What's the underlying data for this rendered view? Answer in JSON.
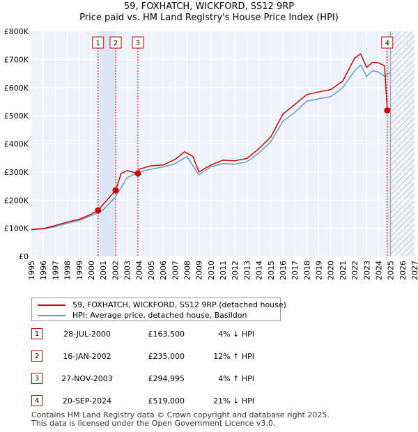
{
  "title_line1": "59, FOXHATCH, WICKFORD, SS12 9RP",
  "title_line2": "Price paid vs. HM Land Registry's House Price Index (HPI)",
  "legend": {
    "property_label": "59, FOXHATCH, WICKFORD, SS12 9RP (detached house)",
    "hpi_label": "HPI: Average price, detached house, Basildon"
  },
  "colors": {
    "property": "#cc0000",
    "hpi": "#6699cc",
    "shade": "#dde6f5",
    "badge_border": "#cc0000"
  },
  "sales": [
    {
      "num": "1",
      "date": "28-JUL-2000",
      "price": "£163,500",
      "hpi": "4% ↓ HPI"
    },
    {
      "num": "2",
      "date": "16-JAN-2002",
      "price": "£235,000",
      "hpi": "12% ↑ HPI"
    },
    {
      "num": "3",
      "date": "27-NOV-2003",
      "price": "£294,995",
      "hpi": "4% ↑ HPI"
    },
    {
      "num": "4",
      "date": "20-SEP-2024",
      "price": "£519,000",
      "hpi": "21% ↓ HPI"
    }
  ],
  "footer_line1": "Contains HM Land Registry data © Crown copyright and database right 2025.",
  "footer_line2": "This data is licensed under the Open Government Licence v3.0.",
  "chart_data": {
    "type": "line",
    "title": "59, FOXHATCH, WICKFORD, SS12 9RP — Price paid vs. HM Land Registry's House Price Index (HPI)",
    "xlim": [
      1995,
      2027
    ],
    "ylim": [
      0,
      800000
    ],
    "x_ticks": [
      "1995",
      "1996",
      "1997",
      "1998",
      "1999",
      "2000",
      "2001",
      "2002",
      "2003",
      "2004",
      "2005",
      "2006",
      "2007",
      "2008",
      "2009",
      "2010",
      "2011",
      "2012",
      "2013",
      "2014",
      "2015",
      "2016",
      "2017",
      "2018",
      "2019",
      "2020",
      "2021",
      "2022",
      "2023",
      "2024",
      "2025",
      "2026",
      "2027"
    ],
    "y_ticks": [
      {
        "value": 0,
        "label": "£0"
      },
      {
        "value": 100000,
        "label": "£100K"
      },
      {
        "value": 200000,
        "label": "£200K"
      },
      {
        "value": 300000,
        "label": "£300K"
      },
      {
        "value": 400000,
        "label": "£400K"
      },
      {
        "value": 500000,
        "label": "£500K"
      },
      {
        "value": 600000,
        "label": "£600K"
      },
      {
        "value": 700000,
        "label": "£700K"
      },
      {
        "value": 800000,
        "label": "£800K"
      }
    ],
    "shaded_ranges": [
      [
        2000.57,
        2002.04
      ],
      [
        2024.72,
        2025.0
      ]
    ],
    "future_hatch_from": 2025.0,
    "sale_markers": [
      {
        "label": "1",
        "x": 2000.57,
        "price": 163500
      },
      {
        "label": "2",
        "x": 2002.04,
        "price": 235000
      },
      {
        "label": "3",
        "x": 2003.9,
        "price": 294995
      },
      {
        "label": "4",
        "x": 2024.72,
        "price": 519000
      }
    ],
    "series": [
      {
        "name": "59, FOXHATCH, WICKFORD, SS12 9RP (detached house)",
        "x": [
          1995,
          1996,
          1997,
          1998,
          1999,
          2000,
          2000.57,
          2001,
          2002.04,
          2002.5,
          2003,
          2003.9,
          2004,
          2005,
          2006,
          2007,
          2007.8,
          2008.5,
          2009,
          2010,
          2011,
          2012,
          2013,
          2014,
          2015,
          2016,
          2017,
          2018,
          2019,
          2020,
          2021,
          2022,
          2022.5,
          2023,
          2023.5,
          2024,
          2024.5,
          2024.72,
          2025
        ],
        "values": [
          96000,
          99000,
          110000,
          122000,
          132000,
          150000,
          163500,
          185000,
          235000,
          295000,
          305000,
          294995,
          310000,
          322000,
          325000,
          345000,
          372000,
          355000,
          300000,
          325000,
          342000,
          340000,
          348000,
          383000,
          425000,
          505000,
          540000,
          575000,
          585000,
          593000,
          623000,
          705000,
          720000,
          672000,
          690000,
          688000,
          678000,
          519000,
          525000
        ]
      },
      {
        "name": "HPI: Average price, detached house, Basildon",
        "x": [
          1995,
          1996,
          1997,
          1998,
          1999,
          2000,
          2001,
          2002,
          2003,
          2004,
          2005,
          2006,
          2007,
          2008,
          2009,
          2010,
          2011,
          2012,
          2013,
          2014,
          2015,
          2016,
          2017,
          2018,
          2019,
          2020,
          2021,
          2022,
          2022.5,
          2023,
          2023.5,
          2024,
          2024.5,
          2025
        ],
        "values": [
          94000,
          98000,
          105000,
          118000,
          128000,
          145000,
          165000,
          210000,
          280000,
          300000,
          310000,
          318000,
          330000,
          355000,
          290000,
          318000,
          330000,
          328000,
          336000,
          368000,
          408000,
          480000,
          512000,
          552000,
          560000,
          568000,
          600000,
          660000,
          680000,
          640000,
          660000,
          655000,
          640000,
          655000
        ]
      }
    ]
  }
}
